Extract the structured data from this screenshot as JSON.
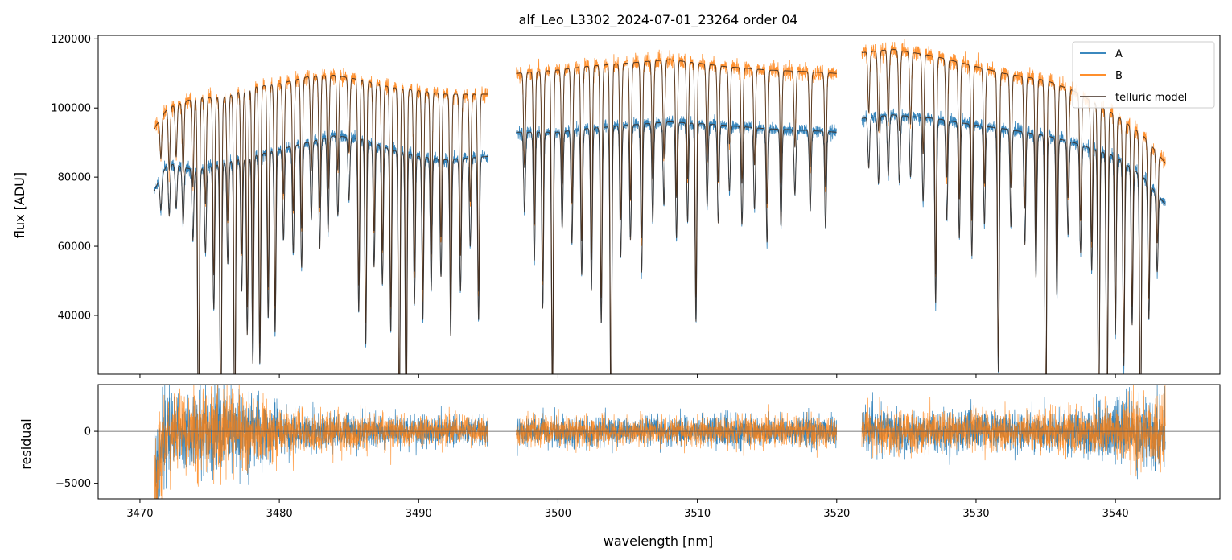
{
  "chart_data": [
    {
      "type": "line",
      "panel": "top",
      "title": "alf_Leo_L3302_2024-07-01_23264  order 04",
      "ylabel": "flux [ADU]",
      "xlabel": "",
      "xlim": [
        3467,
        3547.5
      ],
      "ylim": [
        23000,
        121000
      ],
      "yticks": [
        40000,
        60000,
        80000,
        100000,
        120000
      ],
      "ytick_labels": [
        "40000",
        "60000",
        "80000",
        "100000",
        "120000"
      ],
      "xticks": [
        3470,
        3480,
        3490,
        3500,
        3510,
        3520,
        3530,
        3540
      ],
      "grid": false,
      "legend": {
        "placement": "top-right",
        "entries": [
          {
            "label": "A",
            "color": "#1f77b4"
          },
          {
            "label": "B",
            "color": "#ff7f0e"
          },
          {
            "label": "telluric model",
            "color": "#5a4a40"
          }
        ]
      },
      "series": [
        {
          "name": "A",
          "color": "#1f77b4",
          "segments": [
            [
              3471.0,
              3495.0
            ],
            [
              3497.0,
              3520.0
            ],
            [
              3521.8,
              3543.6
            ]
          ],
          "continuum": [
            [
              3471,
              76000
            ],
            [
              3472,
              84000
            ],
            [
              3474,
              82000
            ],
            [
              3476,
              84000
            ],
            [
              3478,
              86000
            ],
            [
              3480,
              88000
            ],
            [
              3482,
              90000
            ],
            [
              3484,
              92000
            ],
            [
              3486,
              91000
            ],
            [
              3488,
              88000
            ],
            [
              3490,
              86000
            ],
            [
              3492,
              85000
            ],
            [
              3495,
              86000
            ],
            [
              3497,
              93000
            ],
            [
              3500,
              93000
            ],
            [
              3502,
              94000
            ],
            [
              3505,
              95000
            ],
            [
              3508,
              96000
            ],
            [
              3510,
              95500
            ],
            [
              3512,
              95000
            ],
            [
              3515,
              94000
            ],
            [
              3518,
              93500
            ],
            [
              3520,
              93000
            ],
            [
              3521.8,
              97000
            ],
            [
              3524,
              98000
            ],
            [
              3527,
              97000
            ],
            [
              3530,
              95000
            ],
            [
              3532,
              94000
            ],
            [
              3535,
              92000
            ],
            [
              3537,
              90000
            ],
            [
              3540,
              86000
            ],
            [
              3542,
              80000
            ],
            [
              3543.6,
              72000
            ]
          ]
        },
        {
          "name": "B",
          "color": "#ff7f0e",
          "segments": [
            [
              3471.0,
              3495.0
            ],
            [
              3497.0,
              3520.0
            ],
            [
              3521.8,
              3543.6
            ]
          ],
          "continuum": [
            [
              3471,
              94000
            ],
            [
              3472,
              100000
            ],
            [
              3474,
              103000
            ],
            [
              3476,
              103000
            ],
            [
              3478,
              106000
            ],
            [
              3480,
              107000
            ],
            [
              3482,
              109000
            ],
            [
              3484,
              109500
            ],
            [
              3486,
              108000
            ],
            [
              3488,
              106000
            ],
            [
              3490,
              105000
            ],
            [
              3492,
              104000
            ],
            [
              3495,
              104000
            ],
            [
              3497,
              110000
            ],
            [
              3500,
              111000
            ],
            [
              3502,
              112000
            ],
            [
              3505,
              113000
            ],
            [
              3508,
              114000
            ],
            [
              3510,
              113000
            ],
            [
              3512,
              112000
            ],
            [
              3515,
              111000
            ],
            [
              3518,
              110500
            ],
            [
              3520,
              110000
            ],
            [
              3521.8,
              116000
            ],
            [
              3524,
              117000
            ],
            [
              3527,
              115000
            ],
            [
              3530,
              112000
            ],
            [
              3532,
              110000
            ],
            [
              3535,
              108000
            ],
            [
              3537,
              105000
            ],
            [
              3540,
              98000
            ],
            [
              3542,
              92000
            ],
            [
              3543.6,
              84000
            ]
          ]
        },
        {
          "name": "telluric model",
          "color": "#3b2a20",
          "description_ref": "A/B"
        }
      ],
      "absorption_lines": [
        {
          "x": 3471.5,
          "depth": 0.12
        },
        {
          "x": 3472.1,
          "depth": 0.18
        },
        {
          "x": 3472.6,
          "depth": 0.15
        },
        {
          "x": 3473.1,
          "depth": 0.2
        },
        {
          "x": 3473.8,
          "depth": 0.25
        },
        {
          "x": 3474.2,
          "depth": 0.95
        },
        {
          "x": 3474.7,
          "depth": 0.3
        },
        {
          "x": 3475.3,
          "depth": 0.5
        },
        {
          "x": 3475.8,
          "depth": 0.95
        },
        {
          "x": 3476.3,
          "depth": 0.35
        },
        {
          "x": 3476.8,
          "depth": 0.95
        },
        {
          "x": 3477.3,
          "depth": 0.45
        },
        {
          "x": 3477.7,
          "depth": 0.6
        },
        {
          "x": 3478.1,
          "depth": 0.7
        },
        {
          "x": 3478.6,
          "depth": 0.7
        },
        {
          "x": 3479.2,
          "depth": 0.55
        },
        {
          "x": 3479.7,
          "depth": 0.6
        },
        {
          "x": 3480.3,
          "depth": 0.3
        },
        {
          "x": 3481.0,
          "depth": 0.35
        },
        {
          "x": 3481.6,
          "depth": 0.4
        },
        {
          "x": 3482.3,
          "depth": 0.25
        },
        {
          "x": 3482.9,
          "depth": 0.35
        },
        {
          "x": 3483.5,
          "depth": 0.3
        },
        {
          "x": 3484.2,
          "depth": 0.25
        },
        {
          "x": 3485.0,
          "depth": 0.2
        },
        {
          "x": 3485.7,
          "depth": 0.55
        },
        {
          "x": 3486.2,
          "depth": 0.65
        },
        {
          "x": 3486.8,
          "depth": 0.4
        },
        {
          "x": 3487.4,
          "depth": 0.45
        },
        {
          "x": 3488.0,
          "depth": 0.6
        },
        {
          "x": 3488.6,
          "depth": 0.95
        },
        {
          "x": 3489.1,
          "depth": 0.95
        },
        {
          "x": 3489.7,
          "depth": 0.5
        },
        {
          "x": 3490.3,
          "depth": 0.55
        },
        {
          "x": 3490.9,
          "depth": 0.45
        },
        {
          "x": 3491.6,
          "depth": 0.4
        },
        {
          "x": 3492.3,
          "depth": 0.6
        },
        {
          "x": 3493.0,
          "depth": 0.45
        },
        {
          "x": 3493.7,
          "depth": 0.3
        },
        {
          "x": 3494.3,
          "depth": 0.55
        },
        {
          "x": 3497.6,
          "depth": 0.25
        },
        {
          "x": 3498.3,
          "depth": 0.4
        },
        {
          "x": 3498.9,
          "depth": 0.55
        },
        {
          "x": 3499.6,
          "depth": 0.85
        },
        {
          "x": 3500.3,
          "depth": 0.3
        },
        {
          "x": 3501.0,
          "depth": 0.35
        },
        {
          "x": 3501.7,
          "depth": 0.45
        },
        {
          "x": 3502.4,
          "depth": 0.5
        },
        {
          "x": 3503.1,
          "depth": 0.6
        },
        {
          "x": 3503.8,
          "depth": 0.95
        },
        {
          "x": 3504.5,
          "depth": 0.4
        },
        {
          "x": 3505.2,
          "depth": 0.35
        },
        {
          "x": 3506.0,
          "depth": 0.45
        },
        {
          "x": 3506.8,
          "depth": 0.3
        },
        {
          "x": 3507.6,
          "depth": 0.25
        },
        {
          "x": 3508.5,
          "depth": 0.35
        },
        {
          "x": 3509.3,
          "depth": 0.3
        },
        {
          "x": 3509.9,
          "depth": 0.6
        },
        {
          "x": 3510.7,
          "depth": 0.25
        },
        {
          "x": 3511.5,
          "depth": 0.3
        },
        {
          "x": 3512.3,
          "depth": 0.2
        },
        {
          "x": 3513.2,
          "depth": 0.3
        },
        {
          "x": 3514.1,
          "depth": 0.25
        },
        {
          "x": 3515.0,
          "depth": 0.35
        },
        {
          "x": 3516.0,
          "depth": 0.3
        },
        {
          "x": 3517.0,
          "depth": 0.2
        },
        {
          "x": 3518.1,
          "depth": 0.25
        },
        {
          "x": 3519.2,
          "depth": 0.3
        },
        {
          "x": 3522.3,
          "depth": 0.15
        },
        {
          "x": 3523.0,
          "depth": 0.2
        },
        {
          "x": 3523.7,
          "depth": 0.18
        },
        {
          "x": 3524.5,
          "depth": 0.2
        },
        {
          "x": 3525.3,
          "depth": 0.18
        },
        {
          "x": 3526.2,
          "depth": 0.25
        },
        {
          "x": 3527.1,
          "depth": 0.55
        },
        {
          "x": 3527.9,
          "depth": 0.3
        },
        {
          "x": 3528.8,
          "depth": 0.35
        },
        {
          "x": 3529.7,
          "depth": 0.4
        },
        {
          "x": 3530.6,
          "depth": 0.3
        },
        {
          "x": 3531.6,
          "depth": 0.75
        },
        {
          "x": 3532.5,
          "depth": 0.3
        },
        {
          "x": 3533.5,
          "depth": 0.35
        },
        {
          "x": 3534.3,
          "depth": 0.45
        },
        {
          "x": 3535.0,
          "depth": 0.95
        },
        {
          "x": 3535.8,
          "depth": 0.5
        },
        {
          "x": 3536.6,
          "depth": 0.3
        },
        {
          "x": 3537.5,
          "depth": 0.35
        },
        {
          "x": 3538.3,
          "depth": 0.4
        },
        {
          "x": 3538.8,
          "depth": 0.95
        },
        {
          "x": 3539.4,
          "depth": 0.95
        },
        {
          "x": 3540.0,
          "depth": 0.6
        },
        {
          "x": 3540.6,
          "depth": 0.7
        },
        {
          "x": 3541.2,
          "depth": 0.55
        },
        {
          "x": 3541.8,
          "depth": 0.95
        },
        {
          "x": 3542.4,
          "depth": 0.5
        },
        {
          "x": 3543.0,
          "depth": 0.3
        }
      ]
    },
    {
      "type": "line",
      "panel": "bottom",
      "title": "",
      "ylabel": "residual",
      "xlabel": "wavelength [nm]",
      "xlim": [
        3467,
        3547.5
      ],
      "ylim": [
        -6500,
        4500
      ],
      "yticks": [
        -5000,
        0
      ],
      "ytick_labels": [
        "−5000",
        "0"
      ],
      "xticks": [
        3470,
        3480,
        3490,
        3500,
        3510,
        3520,
        3530,
        3540
      ],
      "xtick_labels": [
        "3470",
        "3480",
        "3490",
        "3500",
        "3510",
        "3520",
        "3530",
        "3540"
      ],
      "zero_line": true,
      "grid": false,
      "series": [
        {
          "name": "A",
          "color": "#1f77b4"
        },
        {
          "name": "B",
          "color": "#ff7f0e"
        }
      ],
      "noise_amplitude": [
        [
          3471,
          5000
        ],
        [
          3473,
          3000
        ],
        [
          3476,
          4000
        ],
        [
          3480,
          2000
        ],
        [
          3485,
          1500
        ],
        [
          3490,
          1300
        ],
        [
          3495,
          1200
        ],
        [
          3497,
          1300
        ],
        [
          3505,
          1200
        ],
        [
          3510,
          1300
        ],
        [
          3520,
          1400
        ],
        [
          3522,
          1800
        ],
        [
          3530,
          1700
        ],
        [
          3535,
          1600
        ],
        [
          3540,
          2600
        ],
        [
          3543.6,
          3500
        ]
      ]
    }
  ]
}
